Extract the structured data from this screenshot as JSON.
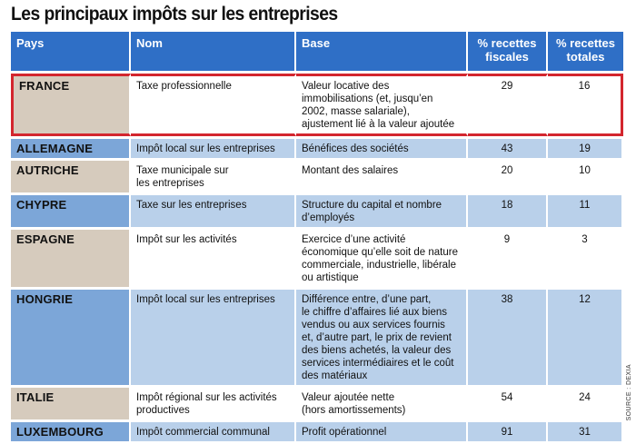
{
  "title": "Les principaux impôts sur les entreprises",
  "source": "SOURCE : DEXIA",
  "headers": [
    "Pays",
    "Nom",
    "Base",
    "% recettes\nfiscales",
    "% recettes\ntotales"
  ],
  "rows": [
    {
      "pays": "FRANCE",
      "nom": "Taxe professionnelle",
      "base": "Valeur locative des\nimmobilisations (et, jusqu’en\n2002, masse salariale),\najustement lié à la valeur ajoutée",
      "fiscales": "29",
      "totales": "16"
    },
    {
      "pays": "ALLEMAGNE",
      "nom": "Impôt local sur les entreprises",
      "base": "Bénéfices des sociétés",
      "fiscales": "43",
      "totales": "19"
    },
    {
      "pays": "AUTRICHE",
      "nom": "Taxe municipale sur\nles entreprises",
      "base": "Montant des salaires",
      "fiscales": "20",
      "totales": "10"
    },
    {
      "pays": "CHYPRE",
      "nom": "Taxe sur les entreprises",
      "base": "Structure du capital et nombre\nd’employés",
      "fiscales": "18",
      "totales": "11"
    },
    {
      "pays": "ESPAGNE",
      "nom": "Impôt sur les activités",
      "base": "Exercice d’une activité\néconomique qu’elle soit de nature\ncommerciale, industrielle, libérale\nou artistique",
      "fiscales": "9",
      "totales": "3"
    },
    {
      "pays": "HONGRIE",
      "nom": "Impôt local sur les entreprises",
      "base": "Différence entre, d’une part,\nle chiffre d’affaires lié aux biens\nvendus ou aux services fournis\net, d’autre part, le prix de revient\ndes biens achetés, la valeur des\nservices intermédiaires et le coût\ndes matériaux",
      "fiscales": "38",
      "totales": "12"
    },
    {
      "pays": "ITALIE",
      "nom": "Impôt régional sur les activités\nproductives",
      "base": "Valeur ajoutée nette\n(hors amortissements)",
      "fiscales": "54",
      "totales": "24"
    },
    {
      "pays": "LUXEMBOURG",
      "nom": "Impôt commercial communal",
      "base": "Profit opérationnel",
      "fiscales": "91",
      "totales": "31"
    }
  ]
}
